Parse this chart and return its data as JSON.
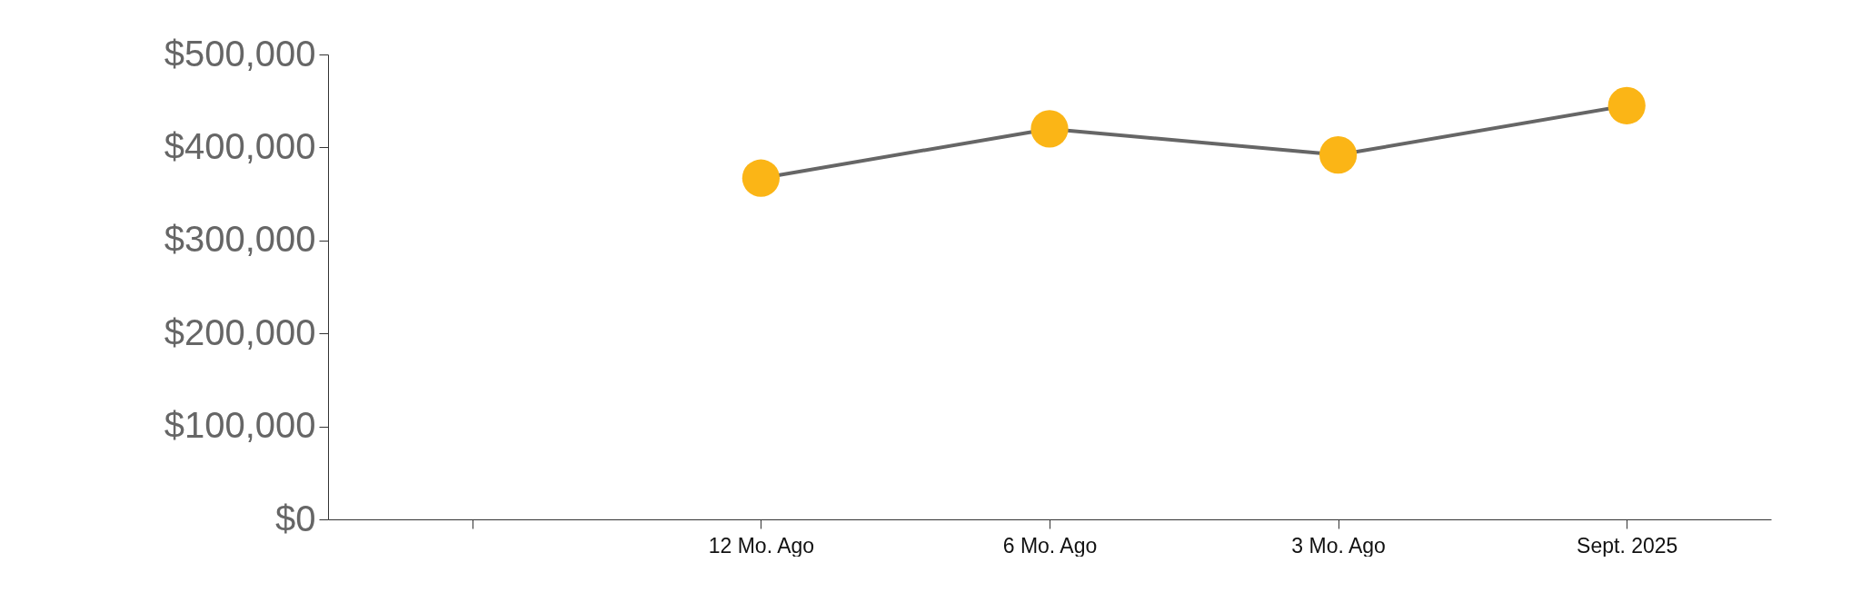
{
  "chart_data": {
    "type": "line",
    "categories": [
      null,
      "12 Mo. Ago",
      "6 Mo. Ago",
      "3 Mo. Ago",
      "Sept. 2025"
    ],
    "series": [
      {
        "color": "#666666",
        "colors": [
          null,
          "#fbb516",
          "#fbb516",
          "#fbb516",
          "#fbb516"
        ],
        "values": [
          null,
          367000,
          420000,
          392000,
          445000
        ]
      }
    ],
    "ylim": [
      0,
      500000
    ],
    "yticks": [
      {
        "value": 0,
        "label": "$0"
      },
      {
        "value": 100000,
        "label": "$100,000"
      },
      {
        "value": 200000,
        "label": "$200,000"
      },
      {
        "value": 300000,
        "label": "$300,000"
      },
      {
        "value": 400000,
        "label": "$400,000"
      },
      {
        "value": 500000,
        "label": "$500,000"
      }
    ],
    "grid": false,
    "marker": "circle",
    "line_style": "solid"
  }
}
